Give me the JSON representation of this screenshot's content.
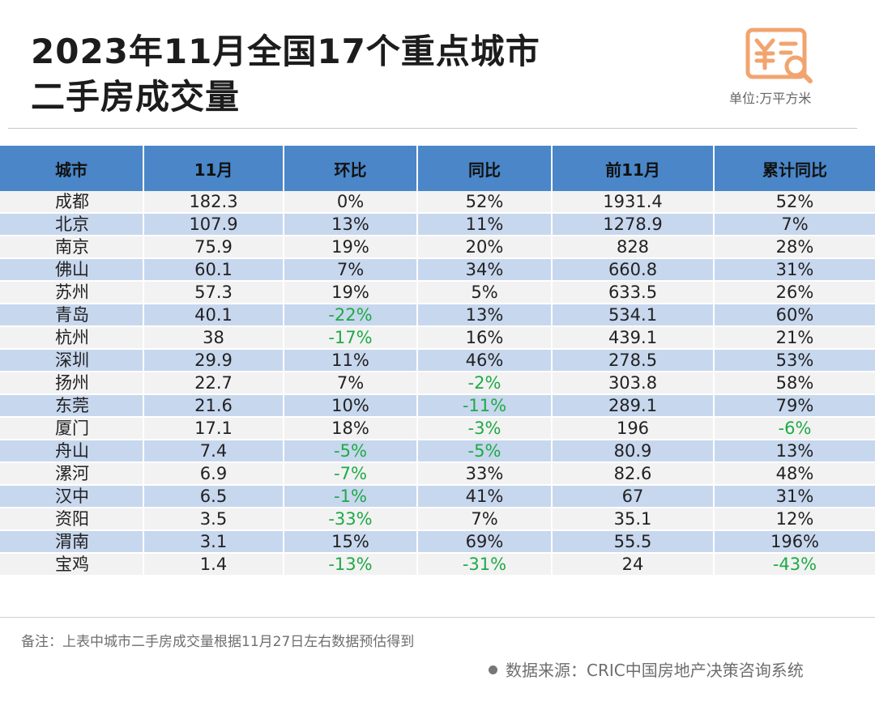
{
  "title_line1": "2023年11月全国17个重点城市",
  "title_line2": "二手房成交量",
  "unit": "单位:万平方米",
  "logo_icon": "yen-document-search-icon",
  "colors": {
    "header_bg": "#4a86c8",
    "row_light": "#f2f2f2",
    "row_blue": "#c7d7ee",
    "negative": "#1faa45",
    "logo": "#f2a46f"
  },
  "chart_data": {
    "type": "table",
    "title": "2023年11月全国17个重点城市二手房成交量",
    "columns": [
      "城市",
      "11月",
      "环比",
      "同比",
      "前11月",
      "累计同比"
    ],
    "rows": [
      [
        "成都",
        "182.3",
        "0%",
        "52%",
        "1931.4",
        "52%"
      ],
      [
        "北京",
        "107.9",
        "13%",
        "11%",
        "1278.9",
        "7%"
      ],
      [
        "南京",
        "75.9",
        "19%",
        "20%",
        "828",
        "28%"
      ],
      [
        "佛山",
        "60.1",
        "7%",
        "34%",
        "660.8",
        "31%"
      ],
      [
        "苏州",
        "57.3",
        "19%",
        "5%",
        "633.5",
        "26%"
      ],
      [
        "青岛",
        "40.1",
        "-22%",
        "13%",
        "534.1",
        "60%"
      ],
      [
        "杭州",
        "38",
        "-17%",
        "16%",
        "439.1",
        "21%"
      ],
      [
        "深圳",
        "29.9",
        "11%",
        "46%",
        "278.5",
        "53%"
      ],
      [
        "扬州",
        "22.7",
        "7%",
        "-2%",
        "303.8",
        "58%"
      ],
      [
        "东莞",
        "21.6",
        "10%",
        "-11%",
        "289.1",
        "79%"
      ],
      [
        "厦门",
        "17.1",
        "18%",
        "-3%",
        "196",
        "-6%"
      ],
      [
        "舟山",
        "7.4",
        "-5%",
        "-5%",
        "80.9",
        "13%"
      ],
      [
        "漯河",
        "6.9",
        "-7%",
        "33%",
        "82.6",
        "48%"
      ],
      [
        "汉中",
        "6.5",
        "-1%",
        "41%",
        "67",
        "31%"
      ],
      [
        "资阳",
        "3.5",
        "-33%",
        "7%",
        "35.1",
        "12%"
      ],
      [
        "渭南",
        "3.1",
        "15%",
        "69%",
        "55.5",
        "196%"
      ],
      [
        "宝鸡",
        "1.4",
        "-13%",
        "-31%",
        "24",
        "-43%"
      ]
    ]
  },
  "note": "备注：上表中城市二手房成交量根据11月27日左右数据预估得到",
  "source": "数据来源：CRIC中国房地产决策咨询系统"
}
